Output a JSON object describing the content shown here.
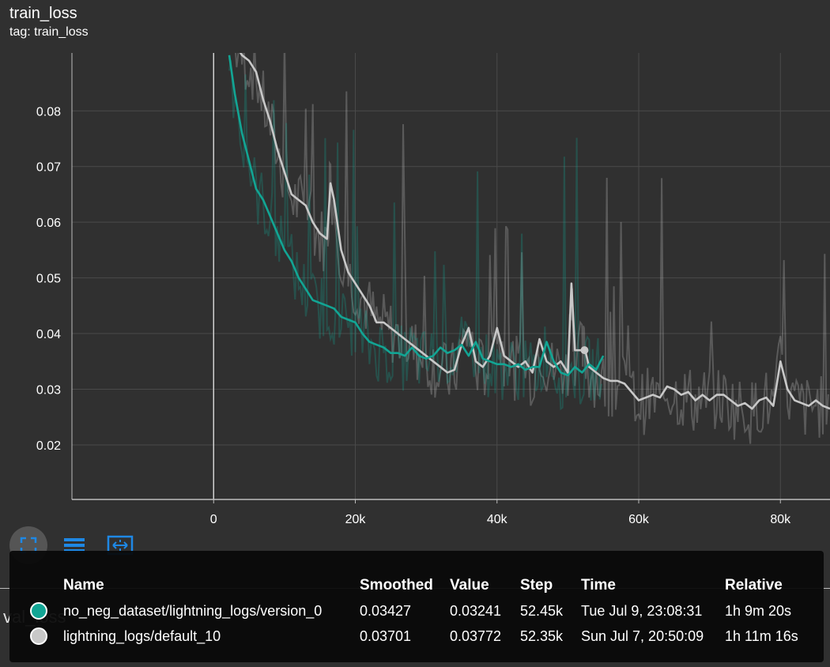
{
  "card": {
    "title": "train_loss",
    "tag": "tag: train_loss"
  },
  "next_card": {
    "title": "val_loss"
  },
  "toolbar": [
    {
      "name": "fullscreen-icon"
    },
    {
      "name": "data-table-icon"
    },
    {
      "name": "fit-domain-icon"
    }
  ],
  "colors": {
    "background": "#303030",
    "grid": "#4a4a4a",
    "series_teal": "#12a594",
    "series_gray": "#c8c8c8"
  },
  "chart_data": {
    "type": "line",
    "title": "train_loss",
    "xlim": [
      -20000,
      87000
    ],
    "ylim": [
      0.0102,
      0.0904
    ],
    "x_ticks": [
      0,
      20000,
      40000,
      60000,
      80000
    ],
    "x_tick_labels": [
      "0",
      "20k",
      "40k",
      "60k",
      "80k"
    ],
    "y_ticks": [
      0.02,
      0.03,
      0.04,
      0.05,
      0.06,
      0.07,
      0.08
    ],
    "y_tick_labels": [
      "0.02",
      "0.03",
      "0.04",
      "0.05",
      "0.06",
      "0.07",
      "0.08"
    ],
    "grid": true,
    "series": [
      {
        "name": "no_neg_dataset/lightning_logs/version_0",
        "color": "#12a594",
        "x": [
          2200,
          3000,
          4000,
          5000,
          6000,
          7000,
          8000,
          9000,
          10000,
          11000,
          12000,
          13000,
          14000,
          15000,
          16000,
          17000,
          18000,
          19000,
          20000,
          21000,
          22000,
          23000,
          24000,
          25000,
          26000,
          27000,
          28000,
          29000,
          30000,
          31000,
          32000,
          33000,
          34000,
          35000,
          36000,
          37000,
          38000,
          39000,
          40000,
          41000,
          42000,
          43000,
          44000,
          45000,
          46000,
          47000,
          48000,
          49000,
          50000,
          51000,
          52000,
          53000,
          54000,
          55000
        ],
        "y": [
          0.09,
          0.083,
          0.076,
          0.071,
          0.066,
          0.064,
          0.061,
          0.058,
          0.055,
          0.053,
          0.05,
          0.048,
          0.046,
          0.0455,
          0.045,
          0.0445,
          0.043,
          0.0425,
          0.042,
          0.04,
          0.0385,
          0.038,
          0.0375,
          0.0365,
          0.0365,
          0.036,
          0.0375,
          0.036,
          0.0355,
          0.036,
          0.0375,
          0.0365,
          0.037,
          0.038,
          0.036,
          0.0385,
          0.0355,
          0.035,
          0.0345,
          0.0345,
          0.034,
          0.0345,
          0.0335,
          0.034,
          0.034,
          0.0385,
          0.035,
          0.033,
          0.0325,
          0.034,
          0.033,
          0.0345,
          0.0335,
          0.036
        ]
      },
      {
        "name": "lightning_logs/default_10",
        "color": "#c8c8c8",
        "x": [
          3000,
          4000,
          5000,
          6000,
          7000,
          8000,
          9000,
          10000,
          11000,
          12000,
          13000,
          14000,
          15000,
          16000,
          16500,
          17000,
          18000,
          19000,
          20000,
          21000,
          22000,
          23000,
          24000,
          25000,
          26000,
          27000,
          28000,
          29000,
          30000,
          31000,
          32000,
          33000,
          34000,
          35000,
          36000,
          37000,
          38000,
          39000,
          40000,
          41000,
          42000,
          43000,
          44000,
          45000,
          46000,
          47000,
          48000,
          49000,
          50000,
          50500,
          51000,
          52000,
          52400,
          53000,
          54000,
          55000,
          56000,
          57000,
          58000,
          59000,
          60000,
          61000,
          62000,
          63000,
          64000,
          65000,
          66000,
          67000,
          68000,
          69000,
          70000,
          71000,
          72000,
          73000,
          74000,
          75000,
          76000,
          77000,
          78000,
          79000,
          80000,
          81000,
          82000,
          83000,
          84000,
          85000,
          86000,
          87000
        ],
        "y": [
          0.092,
          0.09,
          0.089,
          0.087,
          0.082,
          0.078,
          0.073,
          0.069,
          0.065,
          0.064,
          0.063,
          0.06,
          0.058,
          0.057,
          0.067,
          0.064,
          0.055,
          0.051,
          0.049,
          0.047,
          0.045,
          0.042,
          0.042,
          0.041,
          0.04,
          0.039,
          0.038,
          0.037,
          0.036,
          0.035,
          0.034,
          0.033,
          0.0335,
          0.038,
          0.041,
          0.035,
          0.034,
          0.036,
          0.041,
          0.036,
          0.035,
          0.034,
          0.035,
          0.033,
          0.039,
          0.035,
          0.034,
          0.035,
          0.033,
          0.049,
          0.037,
          0.037,
          0.0372,
          0.034,
          0.033,
          0.032,
          0.0315,
          0.0315,
          0.031,
          0.0295,
          0.028,
          0.0285,
          0.029,
          0.0285,
          0.0305,
          0.03,
          0.029,
          0.0295,
          0.028,
          0.029,
          0.028,
          0.029,
          0.029,
          0.028,
          0.027,
          0.0275,
          0.0265,
          0.028,
          0.0285,
          0.027,
          0.035,
          0.03,
          0.028,
          0.0275,
          0.027,
          0.028,
          0.027,
          0.0265
        ]
      }
    ],
    "markers": [
      {
        "series": "lightning_logs/default_10",
        "x": 52350,
        "y": 0.03701
      }
    ]
  },
  "tooltip": {
    "headers": {
      "name": "Name",
      "smoothed": "Smoothed",
      "value": "Value",
      "step": "Step",
      "time": "Time",
      "relative": "Relative"
    },
    "rows": [
      {
        "color": "#12a594",
        "name": "no_neg_dataset/lightning_logs/version_0",
        "smoothed": "0.03427",
        "value": "0.03241",
        "step": "52.45k",
        "time": "Tue Jul 9, 23:08:31",
        "relative": "1h 9m 20s"
      },
      {
        "color": "#c8c8c8",
        "name": "lightning_logs/default_10",
        "smoothed": "0.03701",
        "value": "0.03772",
        "step": "52.35k",
        "time": "Sun Jul 7, 20:50:09",
        "relative": "1h 11m 16s"
      }
    ]
  }
}
